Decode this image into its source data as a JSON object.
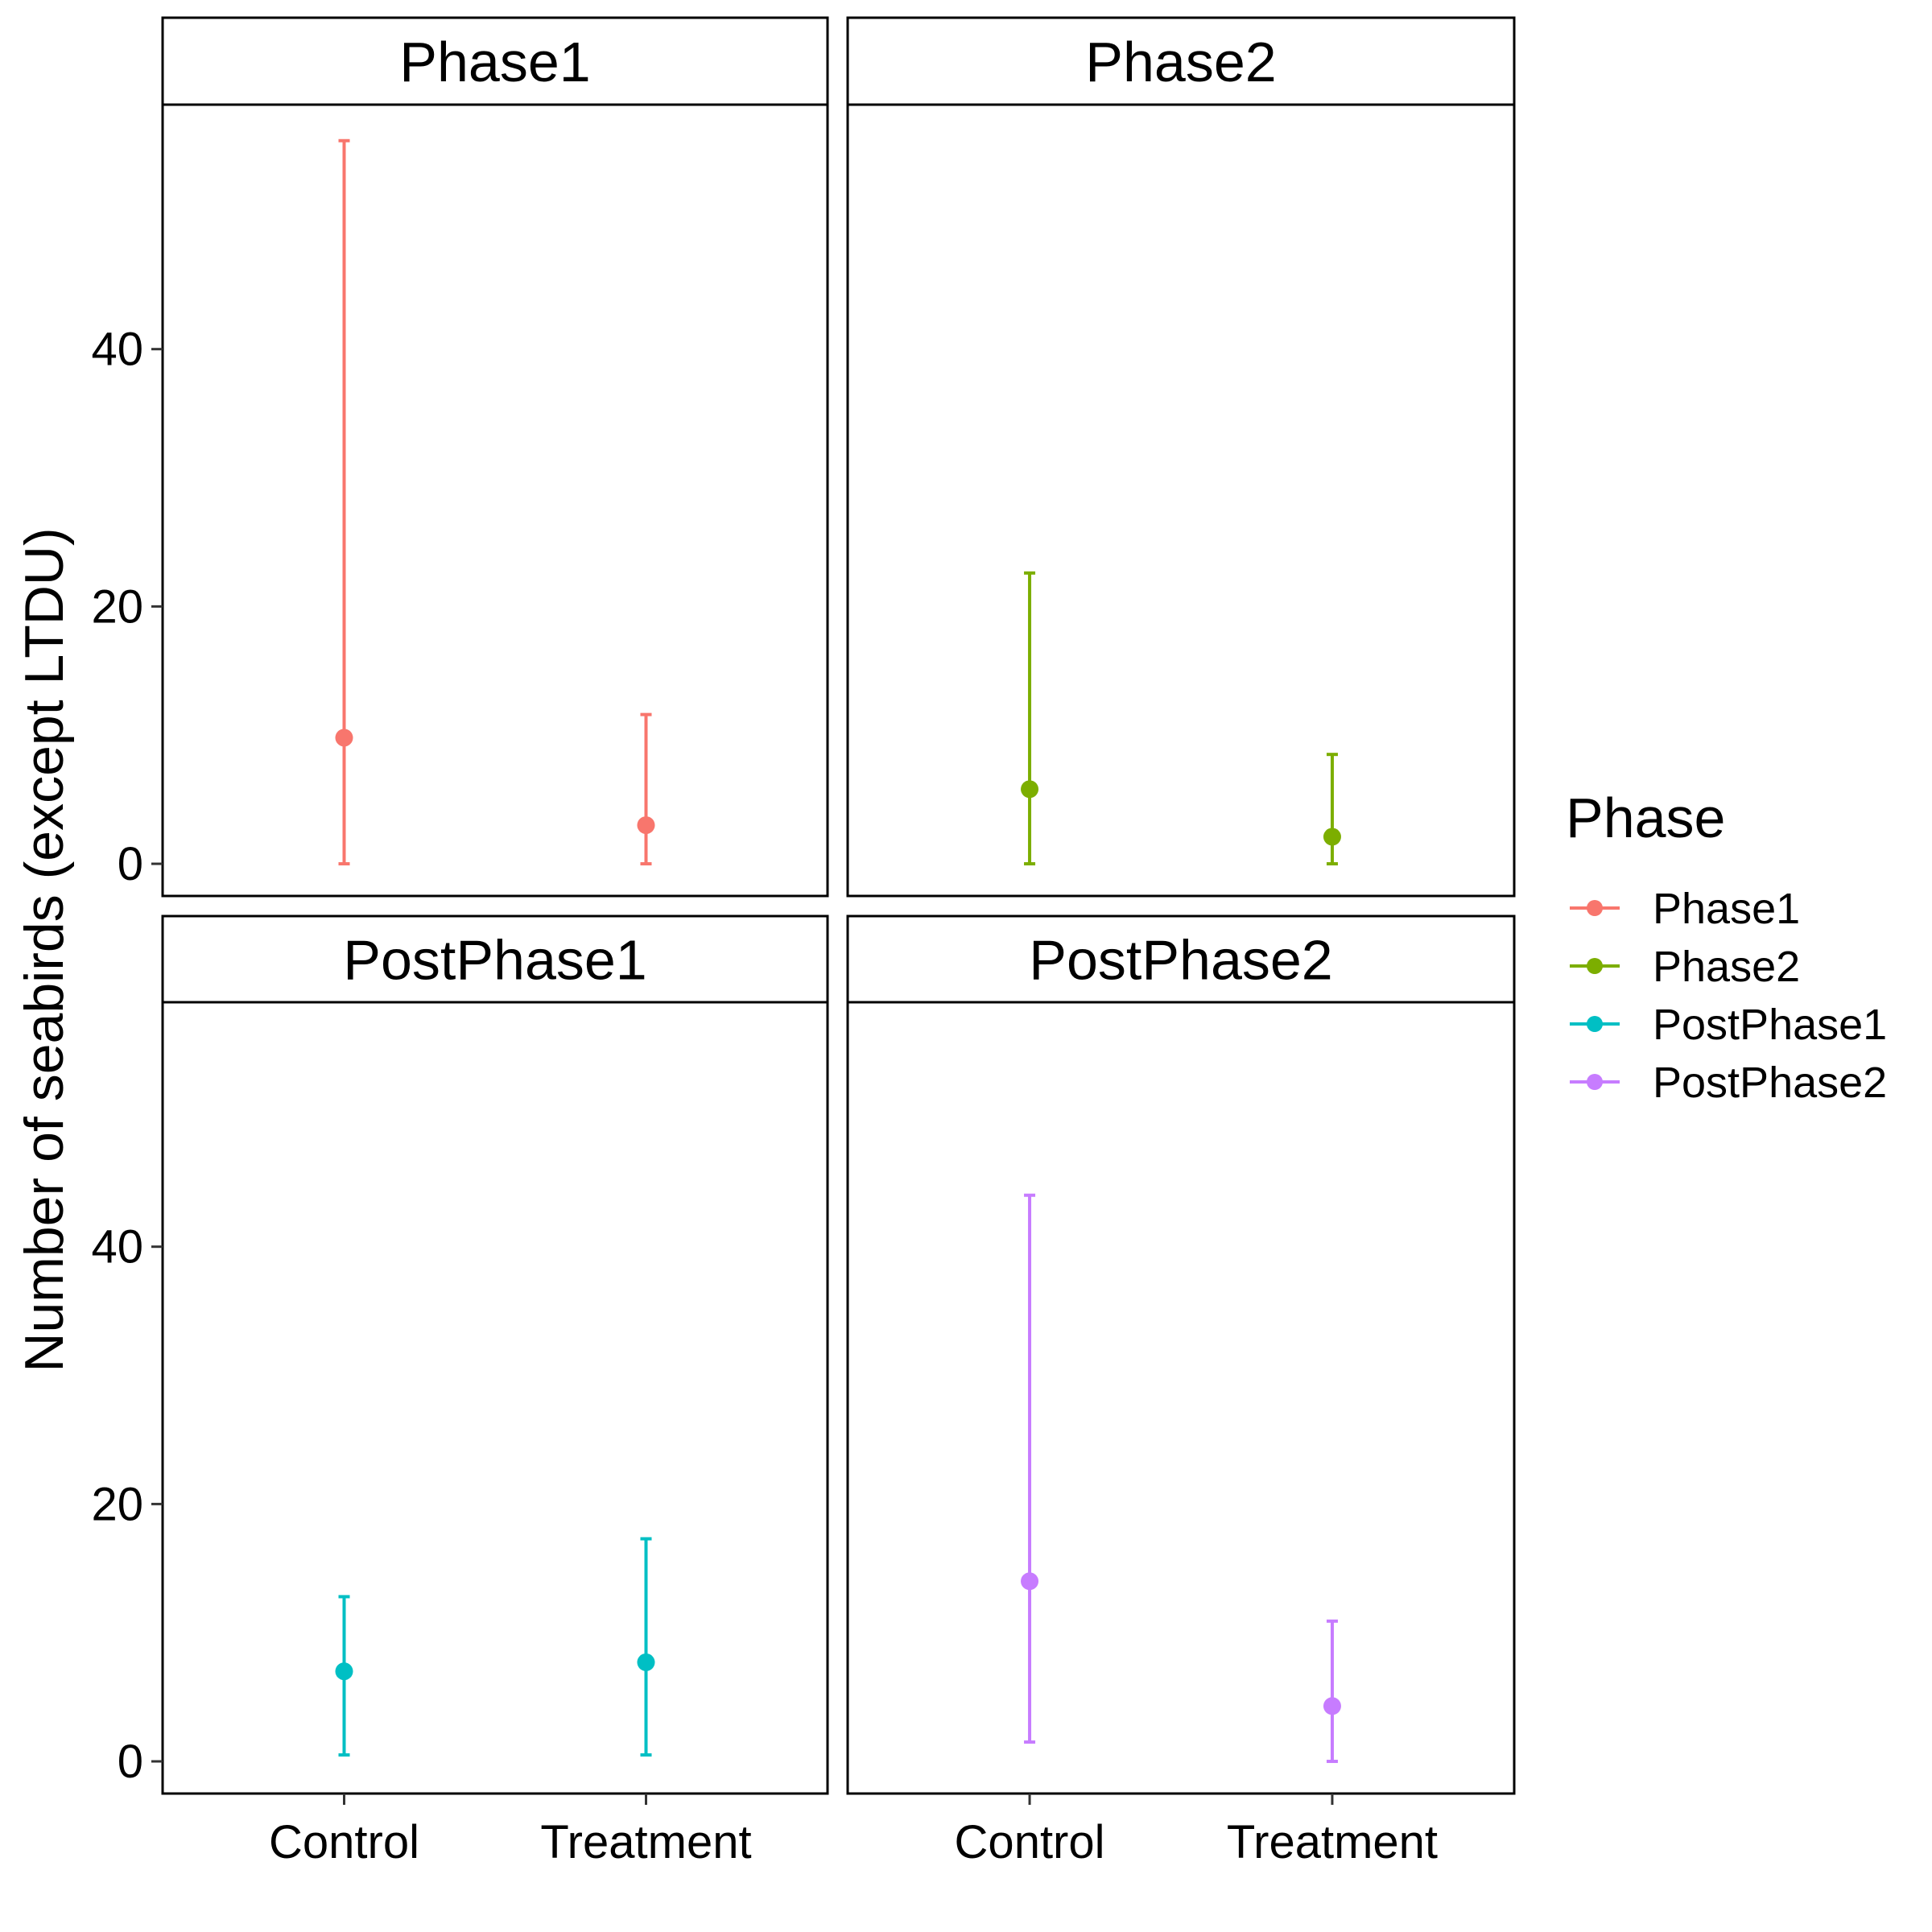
{
  "chart_data": {
    "type": "scatter",
    "subtype": "point-with-errorbars, faceted",
    "ylabel": "Number of seabirds (except LTDU)",
    "xlabel": "",
    "categories": [
      "Control",
      "Treatment"
    ],
    "yticks": [
      0,
      20,
      40
    ],
    "ylim": [
      -2.5,
      59
    ],
    "facet_layout": "2x2, shared axes",
    "legend": {
      "title": "Phase",
      "placement": "right",
      "entries": [
        {
          "label": "Phase1",
          "color": "#F8766D"
        },
        {
          "label": "Phase2",
          "color": "#7CAE00"
        },
        {
          "label": "PostPhase1",
          "color": "#00BFC4"
        },
        {
          "label": "PostPhase2",
          "color": "#C77CFF"
        }
      ]
    },
    "panels": [
      {
        "title": "Phase1",
        "color": "#F8766D",
        "points": [
          {
            "x": "Control",
            "y": 9.8,
            "ymin": 0.0,
            "ymax": 56.2
          },
          {
            "x": "Treatment",
            "y": 3.0,
            "ymin": 0.0,
            "ymax": 11.6
          }
        ]
      },
      {
        "title": "Phase2",
        "color": "#7CAE00",
        "points": [
          {
            "x": "Control",
            "y": 5.8,
            "ymin": 0.0,
            "ymax": 22.6
          },
          {
            "x": "Treatment",
            "y": 2.1,
            "ymin": 0.0,
            "ymax": 8.5
          }
        ]
      },
      {
        "title": "PostPhase1",
        "color": "#00BFC4",
        "points": [
          {
            "x": "Control",
            "y": 7.0,
            "ymin": 0.5,
            "ymax": 12.8
          },
          {
            "x": "Treatment",
            "y": 7.7,
            "ymin": 0.5,
            "ymax": 17.3
          }
        ]
      },
      {
        "title": "PostPhase2",
        "color": "#C77CFF",
        "points": [
          {
            "x": "Control",
            "y": 14.0,
            "ymin": 1.5,
            "ymax": 44.0
          },
          {
            "x": "Treatment",
            "y": 4.3,
            "ymin": 0.0,
            "ymax": 10.9
          }
        ]
      }
    ]
  }
}
